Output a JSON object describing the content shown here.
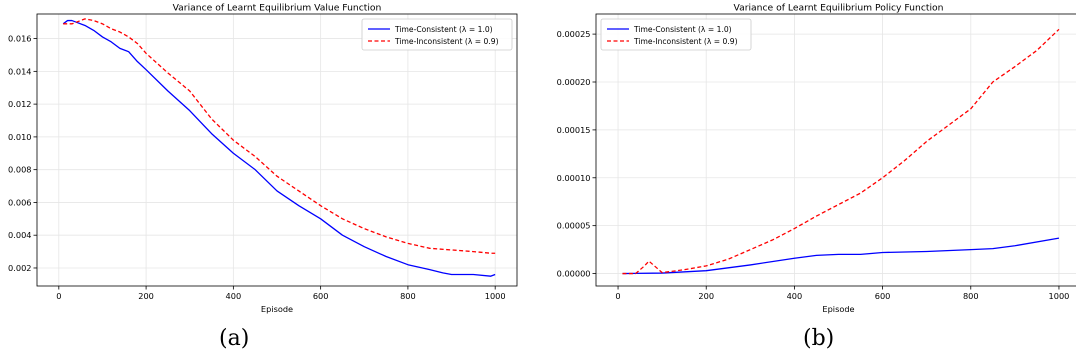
{
  "captions": [
    "(a)",
    "(b)"
  ],
  "colors": {
    "consistent": "#0000ff",
    "inconsistent": "#ff0000",
    "grid": "#e6e6e6",
    "axis": "#000000"
  },
  "chart_data": [
    {
      "type": "line",
      "title": "Variance of Learnt Equilibrium Value Function",
      "xlabel": "Episode",
      "ylabel": "",
      "xlim": [
        -50,
        1050
      ],
      "ylim": [
        0.0009,
        0.0175
      ],
      "xticks": [
        0,
        200,
        400,
        600,
        800,
        1000
      ],
      "yticks": [
        0.002,
        0.004,
        0.006,
        0.008,
        0.01,
        0.012,
        0.014,
        0.016
      ],
      "xtick_labels": [
        "0",
        "200",
        "400",
        "600",
        "800",
        "1000"
      ],
      "ytick_labels": [
        "0.002",
        "0.004",
        "0.006",
        "0.008",
        "0.010",
        "0.012",
        "0.014",
        "0.016"
      ],
      "grid": true,
      "legend_position": "top-right",
      "series": [
        {
          "name": "Time-Consistent (λ = 1.0)",
          "color": "#0000ff",
          "dash": "solid",
          "x": [
            10,
            20,
            30,
            40,
            60,
            80,
            100,
            120,
            140,
            160,
            180,
            200,
            250,
            300,
            350,
            400,
            450,
            500,
            550,
            600,
            650,
            700,
            750,
            800,
            850,
            880,
            900,
            950,
            990,
            1000
          ],
          "y": [
            0.0169,
            0.0171,
            0.0171,
            0.017,
            0.0168,
            0.0165,
            0.0161,
            0.0158,
            0.0154,
            0.0152,
            0.0146,
            0.0141,
            0.0128,
            0.0116,
            0.0102,
            0.009,
            0.008,
            0.0067,
            0.0058,
            0.005,
            0.004,
            0.0033,
            0.0027,
            0.0022,
            0.0019,
            0.0017,
            0.0016,
            0.0016,
            0.0015,
            0.0016
          ]
        },
        {
          "name": "Time-Inconsistent (λ = 0.9)",
          "color": "#ff0000",
          "dash": "dashed",
          "x": [
            10,
            30,
            50,
            60,
            80,
            100,
            120,
            140,
            160,
            180,
            200,
            250,
            300,
            350,
            400,
            450,
            500,
            550,
            600,
            650,
            700,
            750,
            800,
            850,
            900,
            950,
            990,
            1000
          ],
          "y": [
            0.0169,
            0.0169,
            0.0171,
            0.0172,
            0.0171,
            0.0169,
            0.0166,
            0.0164,
            0.0161,
            0.0157,
            0.0151,
            0.0139,
            0.0128,
            0.0111,
            0.0098,
            0.0088,
            0.0076,
            0.0067,
            0.0058,
            0.005,
            0.0044,
            0.0039,
            0.0035,
            0.0032,
            0.0031,
            0.003,
            0.0029,
            0.0029
          ]
        }
      ]
    },
    {
      "type": "line",
      "title": "Variance of Learnt Equilibrium Policy Function",
      "xlabel": "Episode",
      "ylabel": "",
      "xlim": [
        -50,
        1050
      ],
      "ylim": [
        -1.3e-05,
        0.000271
      ],
      "xticks": [
        0,
        200,
        400,
        600,
        800,
        1000
      ],
      "yticks": [
        0,
        5e-05,
        0.0001,
        0.00015,
        0.0002,
        0.00025
      ],
      "xtick_labels": [
        "0",
        "200",
        "400",
        "600",
        "800",
        "1000"
      ],
      "ytick_labels": [
        "0.00000",
        "0.00005",
        "0.00010",
        "0.00015",
        "0.00020",
        "0.00025"
      ],
      "grid": true,
      "legend_position": "top-left",
      "series": [
        {
          "name": "Time-Consistent (λ = 1.0)",
          "color": "#0000ff",
          "dash": "solid",
          "x": [
            10,
            100,
            200,
            300,
            400,
            450,
            500,
            550,
            600,
            700,
            800,
            850,
            900,
            1000
          ],
          "y": [
            0,
            5e-07,
            3e-06,
            9e-06,
            1.6e-05,
            1.9e-05,
            2e-05,
            2e-05,
            2.2e-05,
            2.3e-05,
            2.5e-05,
            2.6e-05,
            2.9e-05,
            3.7e-05
          ]
        },
        {
          "name": "Time-Inconsistent (λ = 0.9)",
          "color": "#ff0000",
          "dash": "dashed",
          "x": [
            10,
            40,
            60,
            70,
            80,
            100,
            150,
            200,
            250,
            300,
            350,
            400,
            450,
            500,
            550,
            600,
            650,
            700,
            750,
            800,
            850,
            900,
            950,
            1000
          ],
          "y": [
            0,
            0,
            8e-06,
            1.3e-05,
            9e-06,
            1e-06,
            4e-06,
            8e-06,
            1.5e-05,
            2.5e-05,
            3.5e-05,
            4.7e-05,
            6e-05,
            7.2e-05,
            8.4e-05,
            0.0001,
            0.000118,
            0.000138,
            0.000155,
            0.000172,
            0.0002,
            0.000216,
            0.000233,
            0.000255
          ]
        }
      ]
    }
  ]
}
